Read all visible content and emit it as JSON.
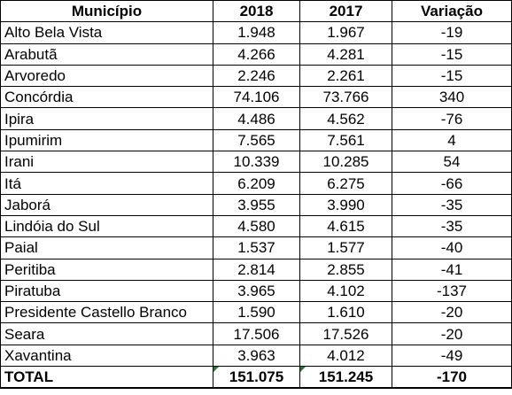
{
  "table": {
    "headers": [
      "Município",
      "2018",
      "2017",
      "Variação"
    ],
    "rows": [
      [
        "Alto Bela Vista",
        "1.948",
        "1.967",
        "-19"
      ],
      [
        "Arabutã",
        "4.266",
        "4.281",
        "-15"
      ],
      [
        "Arvoredo",
        "2.246",
        "2.261",
        "-15"
      ],
      [
        "Concórdia",
        "74.106",
        "73.766",
        "340"
      ],
      [
        "Ipira",
        "4.486",
        "4.562",
        "-76"
      ],
      [
        "Ipumirim",
        "7.565",
        "7.561",
        "4"
      ],
      [
        "Irani",
        "10.339",
        "10.285",
        "54"
      ],
      [
        "Itá",
        "6.209",
        "6.275",
        "-66"
      ],
      [
        "Jaborá",
        "3.955",
        "3.990",
        "-35"
      ],
      [
        "Lindóia do Sul",
        "4.580",
        "4.615",
        "-35"
      ],
      [
        "Paial",
        "1.537",
        "1.577",
        "-40"
      ],
      [
        "Peritiba",
        "2.814",
        "2.855",
        "-41"
      ],
      [
        "Piratuba",
        "3.965",
        "4.102",
        "-137"
      ],
      [
        "Presidente Castello Branco",
        "1.590",
        "1.610",
        "-20"
      ],
      [
        "Seara",
        "17.506",
        "17.526",
        "-20"
      ],
      [
        "Xavantina",
        "3.963",
        "4.012",
        "-49"
      ]
    ],
    "total": [
      "TOTAL",
      "151.075",
      "151.245",
      "-170"
    ]
  },
  "colors": {
    "text": "#000000",
    "grid": "#000000",
    "error_flag": "#1e7b34"
  }
}
